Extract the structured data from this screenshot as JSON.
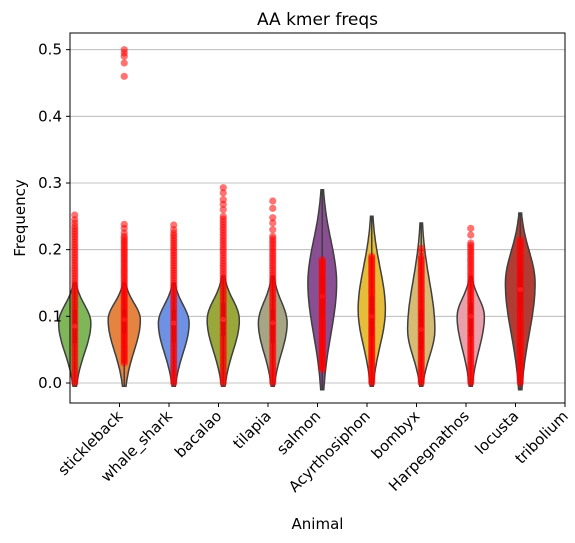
{
  "chart_data": {
    "type": "violin",
    "title": "AA kmer freqs",
    "xlabel": "Animal",
    "ylabel": "Frequency",
    "ylim": [
      -0.03,
      0.525
    ],
    "yticks": [
      0.0,
      0.1,
      0.2,
      0.3,
      0.4,
      0.5
    ],
    "ytick_labels": [
      "0.0",
      "0.1",
      "0.2",
      "0.3",
      "0.4",
      "0.5"
    ],
    "grid": "horizontal",
    "categories": [
      "stickleback",
      "whale_shark",
      "bacalao",
      "tilapia",
      "salmon",
      "Acyrthosiphon",
      "bombyx",
      "Harpegnathos",
      "locusta",
      "tribolium"
    ],
    "violins": [
      {
        "color": "#80b65a",
        "min": 0.0,
        "max": 0.15,
        "q1": 0.06,
        "median": 0.085,
        "q3": 0.11,
        "peak": 0.09,
        "width": 0.65
      },
      {
        "color": "#e58340",
        "min": 0.0,
        "max": 0.15,
        "q1": 0.075,
        "median": 0.095,
        "q3": 0.11,
        "peak": 0.095,
        "width": 0.65
      },
      {
        "color": "#6f91e3",
        "min": 0.0,
        "max": 0.15,
        "q1": 0.06,
        "median": 0.09,
        "q3": 0.11,
        "peak": 0.09,
        "width": 0.62
      },
      {
        "color": "#9aa83b",
        "min": 0.0,
        "max": 0.16,
        "q1": 0.07,
        "median": 0.095,
        "q3": 0.12,
        "peak": 0.095,
        "width": 0.65
      },
      {
        "color": "#a6a684",
        "min": 0.0,
        "max": 0.16,
        "q1": 0.06,
        "median": 0.09,
        "q3": 0.11,
        "peak": 0.09,
        "width": 0.58
      },
      {
        "color": "#8a4e92",
        "min": -0.005,
        "max": 0.29,
        "q1": 0.1,
        "median": 0.13,
        "q3": 0.16,
        "peak": 0.15,
        "width": 0.58
      },
      {
        "color": "#e6bd3b",
        "min": 0.0,
        "max": 0.25,
        "q1": 0.07,
        "median": 0.1,
        "q3": 0.13,
        "peak": 0.11,
        "width": 0.55
      },
      {
        "color": "#d5bb74",
        "min": 0.0,
        "max": 0.24,
        "q1": 0.05,
        "median": 0.08,
        "q3": 0.11,
        "peak": 0.08,
        "width": 0.55
      },
      {
        "color": "#e8a0ab",
        "min": 0.0,
        "max": 0.16,
        "q1": 0.07,
        "median": 0.1,
        "q3": 0.12,
        "peak": 0.1,
        "width": 0.55
      },
      {
        "color": "#b13c34",
        "min": -0.005,
        "max": 0.255,
        "q1": 0.11,
        "median": 0.14,
        "q3": 0.17,
        "peak": 0.15,
        "width": 0.6
      }
    ],
    "points": {
      "color": "#ff0000",
      "series": [
        {
          "min": 0.0,
          "max": 0.235,
          "outliers": [
            0.24,
            0.245,
            0.252
          ]
        },
        {
          "min": 0.03,
          "max": 0.22,
          "outliers": [
            0.225,
            0.232,
            0.238,
            0.46,
            0.48,
            0.49,
            0.495,
            0.5
          ]
        },
        {
          "min": 0.0,
          "max": 0.225,
          "outliers": [
            0.23,
            0.237
          ]
        },
        {
          "min": 0.0,
          "max": 0.25,
          "outliers": [
            0.26,
            0.268,
            0.275,
            0.285,
            0.293
          ]
        },
        {
          "min": 0.0,
          "max": 0.22,
          "outliers": [
            0.23,
            0.24,
            0.248,
            0.262,
            0.273
          ]
        },
        {
          "min": 0.02,
          "max": 0.185,
          "outliers": []
        },
        {
          "min": 0.0,
          "max": 0.19,
          "outliers": []
        },
        {
          "min": 0.0,
          "max": 0.19,
          "outliers": [
            0.197,
            0.202
          ]
        },
        {
          "min": 0.0,
          "max": 0.21,
          "outliers": [
            0.222,
            0.232
          ]
        },
        {
          "min": 0.0,
          "max": 0.215,
          "outliers": []
        }
      ]
    }
  }
}
